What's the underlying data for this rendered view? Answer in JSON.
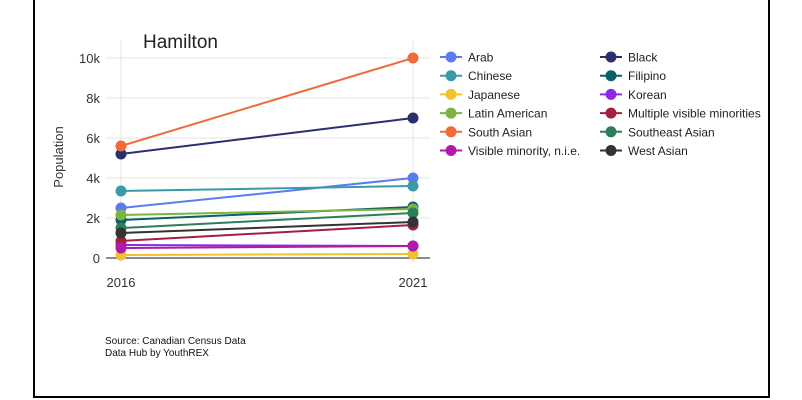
{
  "chart_data": {
    "type": "line",
    "title": "Hamilton",
    "xlabel": "",
    "ylabel": "Population",
    "x": [
      "2016",
      "2021"
    ],
    "ylim": [
      0,
      10800
    ],
    "yticks": [
      0,
      2000,
      4000,
      6000,
      8000,
      10000
    ],
    "ytick_labels": [
      "0",
      "2k",
      "4k",
      "6k",
      "8k",
      "10k"
    ],
    "grid": true,
    "legend_placement": "right",
    "series": [
      {
        "name": "Arab",
        "color": "#5b7cf0",
        "values": [
          2500,
          4000
        ]
      },
      {
        "name": "Black",
        "color": "#2a2f6e",
        "values": [
          5200,
          7000
        ]
      },
      {
        "name": "Chinese",
        "color": "#3a9aa8",
        "values": [
          3350,
          3600
        ]
      },
      {
        "name": "Filipino",
        "color": "#0b5f66",
        "values": [
          1900,
          2550
        ]
      },
      {
        "name": "Japanese",
        "color": "#f2c12e",
        "values": [
          150,
          200
        ]
      },
      {
        "name": "Korean",
        "color": "#8a2be2",
        "values": [
          650,
          600
        ]
      },
      {
        "name": "Latin American",
        "color": "#7cb342",
        "values": [
          2150,
          2450
        ]
      },
      {
        "name": "Multiple visible minorities",
        "color": "#a32040",
        "values": [
          850,
          1650
        ]
      },
      {
        "name": "South Asian",
        "color": "#f26a3a",
        "values": [
          5600,
          10000
        ]
      },
      {
        "name": "Southeast Asian",
        "color": "#2e7d5b",
        "values": [
          1500,
          2250
        ]
      },
      {
        "name": "Visible minority, n.i.e.",
        "color": "#b01aa8",
        "values": [
          500,
          600
        ]
      },
      {
        "name": "West Asian",
        "color": "#333333",
        "values": [
          1250,
          1800
        ]
      }
    ]
  },
  "source": {
    "line1": "Source: Canadian Census Data",
    "line2": "Data Hub by YouthREX"
  }
}
